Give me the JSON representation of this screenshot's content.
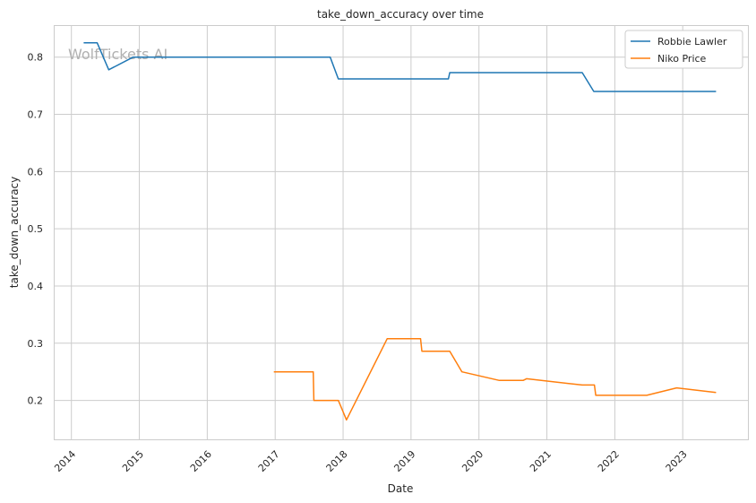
{
  "chart_data": {
    "type": "line",
    "title": "take_down_accuracy over time",
    "xlabel": "Date",
    "ylabel": "take_down_accuracy",
    "xlim": [
      2013.74,
      2023.96
    ],
    "ylim": [
      0.132,
      0.856
    ],
    "xticks": [
      2014,
      2015,
      2016,
      2017,
      2018,
      2019,
      2020,
      2021,
      2022,
      2023
    ],
    "xtick_labels": [
      "2014",
      "2015",
      "2016",
      "2017",
      "2018",
      "2019",
      "2020",
      "2021",
      "2022",
      "2023"
    ],
    "yticks": [
      0.2,
      0.3,
      0.4,
      0.5,
      0.6,
      0.7,
      0.8
    ],
    "ytick_labels": [
      "0.2",
      "0.3",
      "0.4",
      "0.5",
      "0.6",
      "0.7",
      "0.8"
    ],
    "grid": true,
    "legend_position": "top-right",
    "watermark": "WolfTickets AI",
    "series": [
      {
        "name": "Robbie Lawler",
        "color": "#1f77b4",
        "x": [
          2014.18,
          2014.38,
          2014.55,
          2014.91,
          2017.81,
          2017.93,
          2019.55,
          2019.57,
          2021.52,
          2021.69,
          2023.49
        ],
        "y": [
          0.825,
          0.825,
          0.778,
          0.8,
          0.8,
          0.762,
          0.762,
          0.773,
          0.773,
          0.74,
          0.74
        ]
      },
      {
        "name": "Niko Price",
        "color": "#ff7f0e",
        "x": [
          2016.98,
          2017.56,
          2017.57,
          2017.93,
          2018.05,
          2018.65,
          2019.14,
          2019.16,
          2019.57,
          2019.75,
          2020.3,
          2020.65,
          2020.7,
          2021.52,
          2021.7,
          2021.72,
          2022.47,
          2022.91,
          2023.49
        ],
        "y": [
          0.25,
          0.25,
          0.2,
          0.2,
          0.166,
          0.308,
          0.308,
          0.286,
          0.286,
          0.25,
          0.235,
          0.235,
          0.238,
          0.227,
          0.227,
          0.209,
          0.209,
          0.222,
          0.214
        ]
      }
    ]
  }
}
